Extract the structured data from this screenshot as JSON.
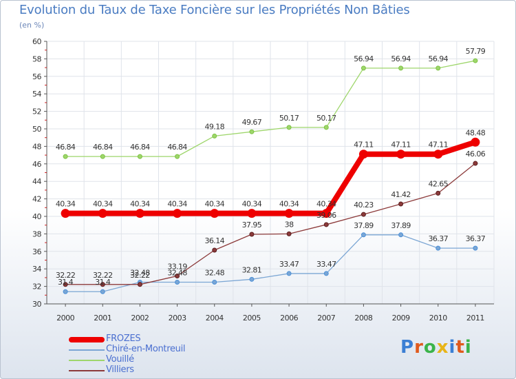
{
  "title": "Evolution du Taux de Taxe Foncière sur les Propriétés Non Bâties",
  "subtitle": "(en %)",
  "logo": {
    "text": "Proxiti",
    "colors": [
      "#3b7fd4",
      "#e05a1c",
      "#3bb34a",
      "#e8b417",
      "#3b7fd4",
      "#e05a1c",
      "#3bb34a"
    ]
  },
  "chart_data": {
    "type": "line",
    "title": "Evolution du Taux de Taxe Foncière sur les Propriétés Non Bâties",
    "ylabel": "(en %)",
    "xlabel": "",
    "ylim": [
      30,
      60
    ],
    "yticks": [
      30,
      32,
      34,
      36,
      38,
      40,
      42,
      44,
      46,
      48,
      50,
      52,
      54,
      56,
      58,
      60
    ],
    "categories": [
      "2000",
      "2001",
      "2002",
      "2003",
      "2004",
      "2005",
      "2006",
      "2007",
      "2008",
      "2009",
      "2010",
      "2011"
    ],
    "grid": true,
    "series": [
      {
        "name": "FROZES",
        "color": "#ee0000",
        "bold": true,
        "values": [
          40.34,
          40.34,
          40.34,
          40.34,
          40.34,
          40.34,
          40.34,
          40.34,
          47.11,
          47.11,
          47.11,
          48.48
        ],
        "labels": [
          "40.34",
          "40.34",
          "40.34",
          "40.34",
          "40.34",
          "40.34",
          "40.34",
          "40.34",
          "47.11",
          "47.11",
          "47.11",
          "48.48"
        ]
      },
      {
        "name": "Chiré-en-Montreuil",
        "color": "#7ba6d4",
        "marker": "#4a90d9",
        "bold": false,
        "values": [
          31.4,
          31.4,
          32.48,
          32.48,
          32.48,
          32.81,
          33.47,
          33.47,
          37.89,
          37.89,
          36.37,
          36.37
        ],
        "labels": [
          "31.4",
          "31.4",
          "32.48",
          "32.48",
          "32.48",
          "32.81",
          "33.47",
          "33.47",
          "37.89",
          "37.89",
          "36.37",
          "36.37"
        ]
      },
      {
        "name": "Vouillé",
        "color": "#9ed66b",
        "marker": "#7dc243",
        "bold": false,
        "values": [
          46.84,
          46.84,
          46.84,
          46.84,
          49.18,
          49.67,
          50.17,
          50.17,
          56.94,
          56.94,
          56.94,
          57.79
        ],
        "labels": [
          "46.84",
          "46.84",
          "46.84",
          "46.84",
          "49.18",
          "49.67",
          "50.17",
          "50.17",
          "56.94",
          "56.94",
          "56.94",
          "57.79"
        ]
      },
      {
        "name": "Villiers",
        "color": "#8c3a3a",
        "marker": "#5a1e1e",
        "bold": false,
        "values": [
          32.22,
          32.22,
          32.22,
          33.19,
          36.14,
          37.95,
          38,
          39.06,
          40.23,
          41.42,
          42.65,
          46.06
        ],
        "labels": [
          "32.22",
          "32.22",
          "32.22",
          "33.19",
          "36.14",
          "37.95",
          "38",
          "39.06",
          "40.23",
          "41.42",
          "42.65",
          "46.06"
        ]
      }
    ],
    "legend": [
      "FROZES",
      "Chiré-en-Montreuil",
      "Vouillé",
      "Villiers"
    ],
    "legend_position": "bottom-left"
  }
}
